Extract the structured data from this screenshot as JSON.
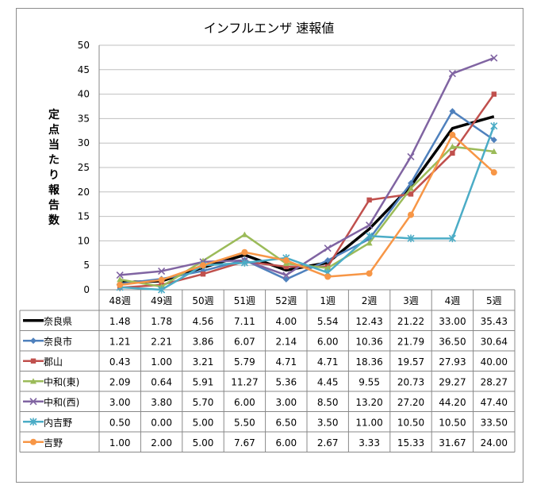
{
  "chart_data": {
    "type": "line",
    "title": "インフルエンザ 速報値",
    "ylabel": "定点当たり報告数",
    "xlabel": "",
    "ylim": [
      0,
      50
    ],
    "ytick_step": 5,
    "grid": true,
    "legend": "table-below",
    "categories": [
      "48週",
      "49週",
      "50週",
      "51週",
      "52週",
      "1週",
      "2週",
      "3週",
      "4週",
      "5週"
    ],
    "series": [
      {
        "name": "奈良県",
        "color": "#000000",
        "marker": "none",
        "values": [
          1.48,
          1.78,
          4.56,
          7.11,
          4.0,
          5.54,
          12.43,
          21.22,
          33.0,
          35.43
        ],
        "labels": [
          "1.48",
          "1.78",
          "4.56",
          "7.11",
          "4.00",
          "5.54",
          "12.43",
          "21.22",
          "33.00",
          "35.43"
        ]
      },
      {
        "name": "奈良市",
        "color": "#4f81bd",
        "marker": "diamond",
        "values": [
          1.21,
          2.21,
          3.86,
          6.07,
          2.14,
          6.0,
          10.36,
          21.79,
          36.5,
          30.64
        ],
        "labels": [
          "1.21",
          "2.21",
          "3.86",
          "6.07",
          "2.14",
          "6.00",
          "10.36",
          "21.79",
          "36.50",
          "30.64"
        ]
      },
      {
        "name": "郡山",
        "color": "#c0504d",
        "marker": "square",
        "values": [
          0.43,
          1.0,
          3.21,
          5.79,
          4.71,
          4.71,
          18.36,
          19.57,
          27.93,
          40.0
        ],
        "labels": [
          "0.43",
          "1.00",
          "3.21",
          "5.79",
          "4.71",
          "4.71",
          "18.36",
          "19.57",
          "27.93",
          "40.00"
        ]
      },
      {
        "name": "中和(東)",
        "color": "#9bbb59",
        "marker": "triangle",
        "values": [
          2.09,
          0.64,
          5.91,
          11.27,
          5.36,
          4.45,
          9.55,
          20.73,
          29.27,
          28.27
        ],
        "labels": [
          "2.09",
          "0.64",
          "5.91",
          "11.27",
          "5.36",
          "4.45",
          "9.55",
          "20.73",
          "29.27",
          "28.27"
        ]
      },
      {
        "name": "中和(西)",
        "color": "#8064a2",
        "marker": "x",
        "values": [
          3.0,
          3.8,
          5.7,
          6.0,
          3.0,
          8.5,
          13.2,
          27.2,
          44.2,
          47.4
        ],
        "labels": [
          "3.00",
          "3.80",
          "5.70",
          "6.00",
          "3.00",
          "8.50",
          "13.20",
          "27.20",
          "44.20",
          "47.40"
        ]
      },
      {
        "name": "内吉野",
        "color": "#4bacc6",
        "marker": "star",
        "values": [
          0.5,
          0.0,
          5.0,
          5.5,
          6.5,
          3.5,
          11.0,
          10.5,
          10.5,
          33.5
        ],
        "labels": [
          "0.50",
          "0.00",
          "5.00",
          "5.50",
          "6.50",
          "3.50",
          "11.00",
          "10.50",
          "10.50",
          "33.50"
        ]
      },
      {
        "name": "吉野",
        "color": "#f79646",
        "marker": "circle",
        "values": [
          1.0,
          2.0,
          5.0,
          7.67,
          6.0,
          2.67,
          3.33,
          15.33,
          31.67,
          24.0
        ],
        "labels": [
          "1.00",
          "2.00",
          "5.00",
          "7.67",
          "6.00",
          "2.67",
          "3.33",
          "15.33",
          "31.67",
          "24.00"
        ]
      }
    ]
  }
}
